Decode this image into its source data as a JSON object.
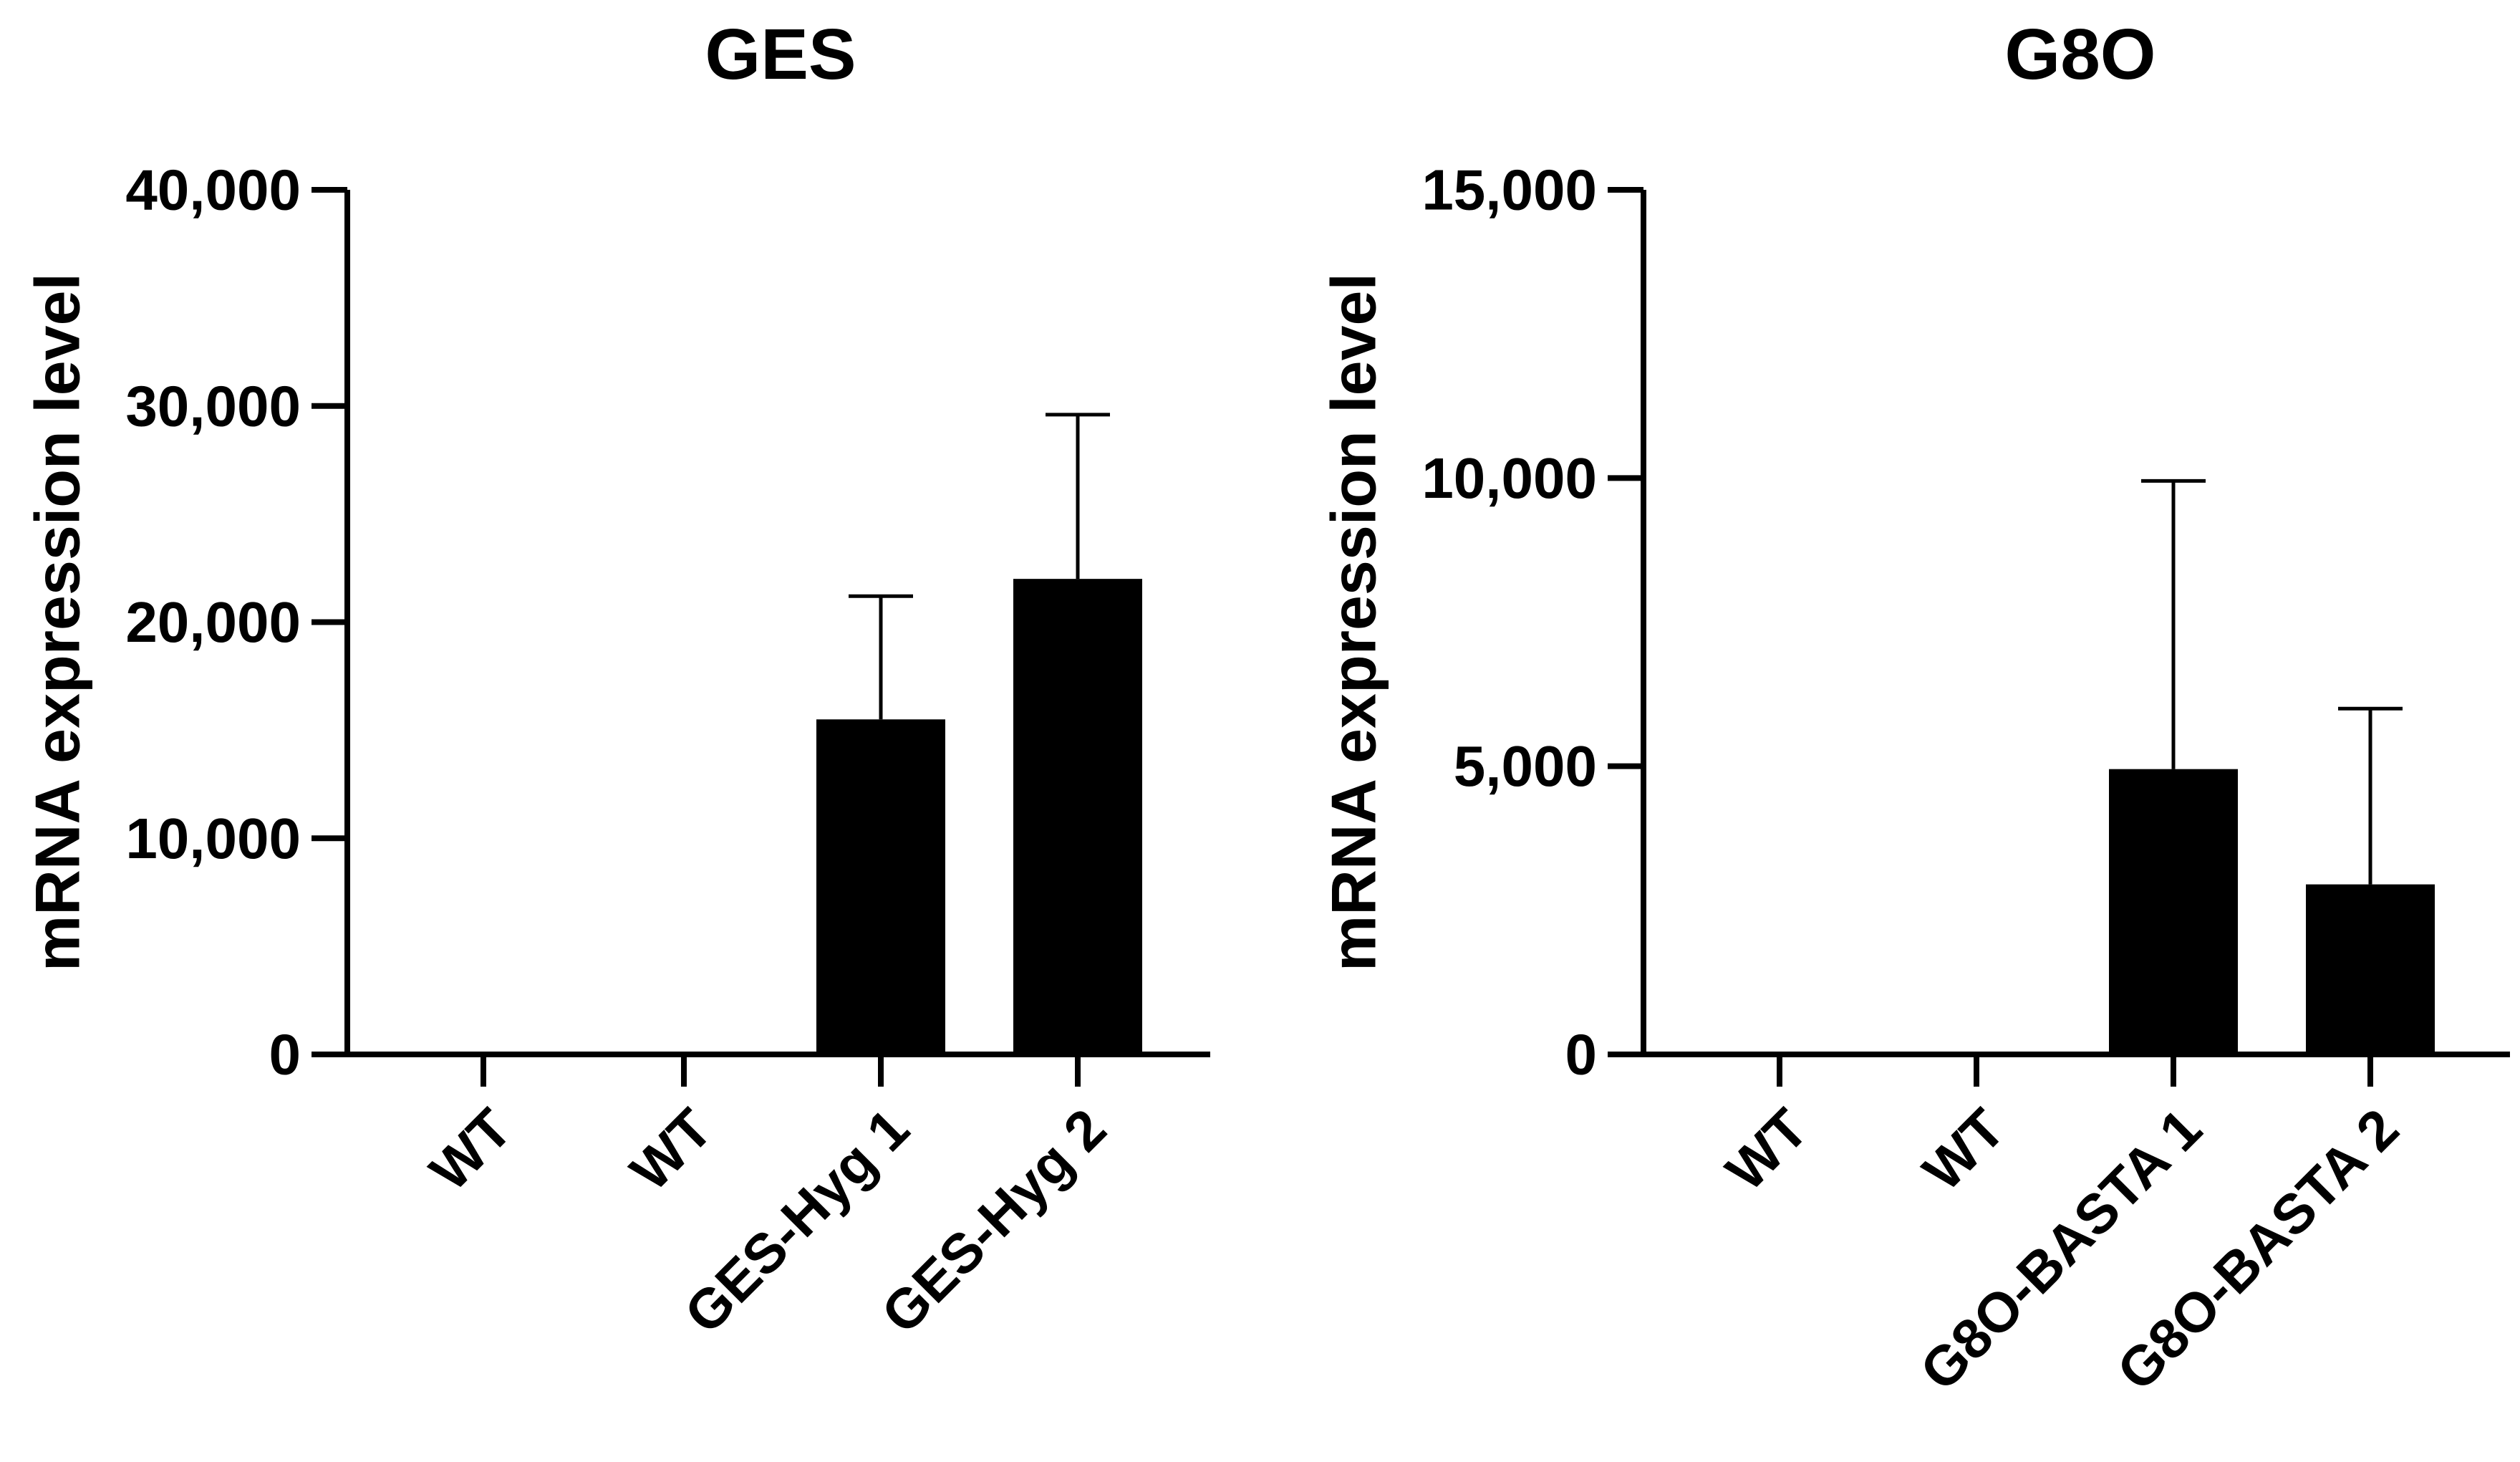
{
  "chart_data": [
    {
      "type": "bar",
      "title": "GES",
      "xlabel": "",
      "ylabel": "mRNA expression level",
      "categories": [
        "WT",
        "WT",
        "GES-Hyg 1",
        "GES-Hyg 2"
      ],
      "values": [
        0,
        0,
        15500,
        22000
      ],
      "errors": [
        0,
        0,
        5700,
        7600
      ],
      "ylim": [
        0,
        40000
      ],
      "yticks": [
        0,
        10000,
        20000,
        30000,
        40000
      ],
      "ytick_labels": [
        "0",
        "10,000",
        "20,000",
        "30,000",
        "40,000"
      ],
      "bar_color": "#000000",
      "grid": false,
      "legend": "none"
    },
    {
      "type": "bar",
      "title": "G8O",
      "xlabel": "",
      "ylabel": "mRNA expression level",
      "categories": [
        "WT",
        "WT",
        "G8O-BASTA 1",
        "G8O-BASTA 2"
      ],
      "values": [
        0,
        0,
        4950,
        2950
      ],
      "errors": [
        0,
        0,
        5000,
        3050
      ],
      "ylim": [
        0,
        15000
      ],
      "yticks": [
        0,
        5000,
        10000,
        15000
      ],
      "ytick_labels": [
        "0",
        "5,000",
        "10,000",
        "15,000"
      ],
      "bar_color": "#000000",
      "grid": false,
      "legend": "none"
    }
  ]
}
